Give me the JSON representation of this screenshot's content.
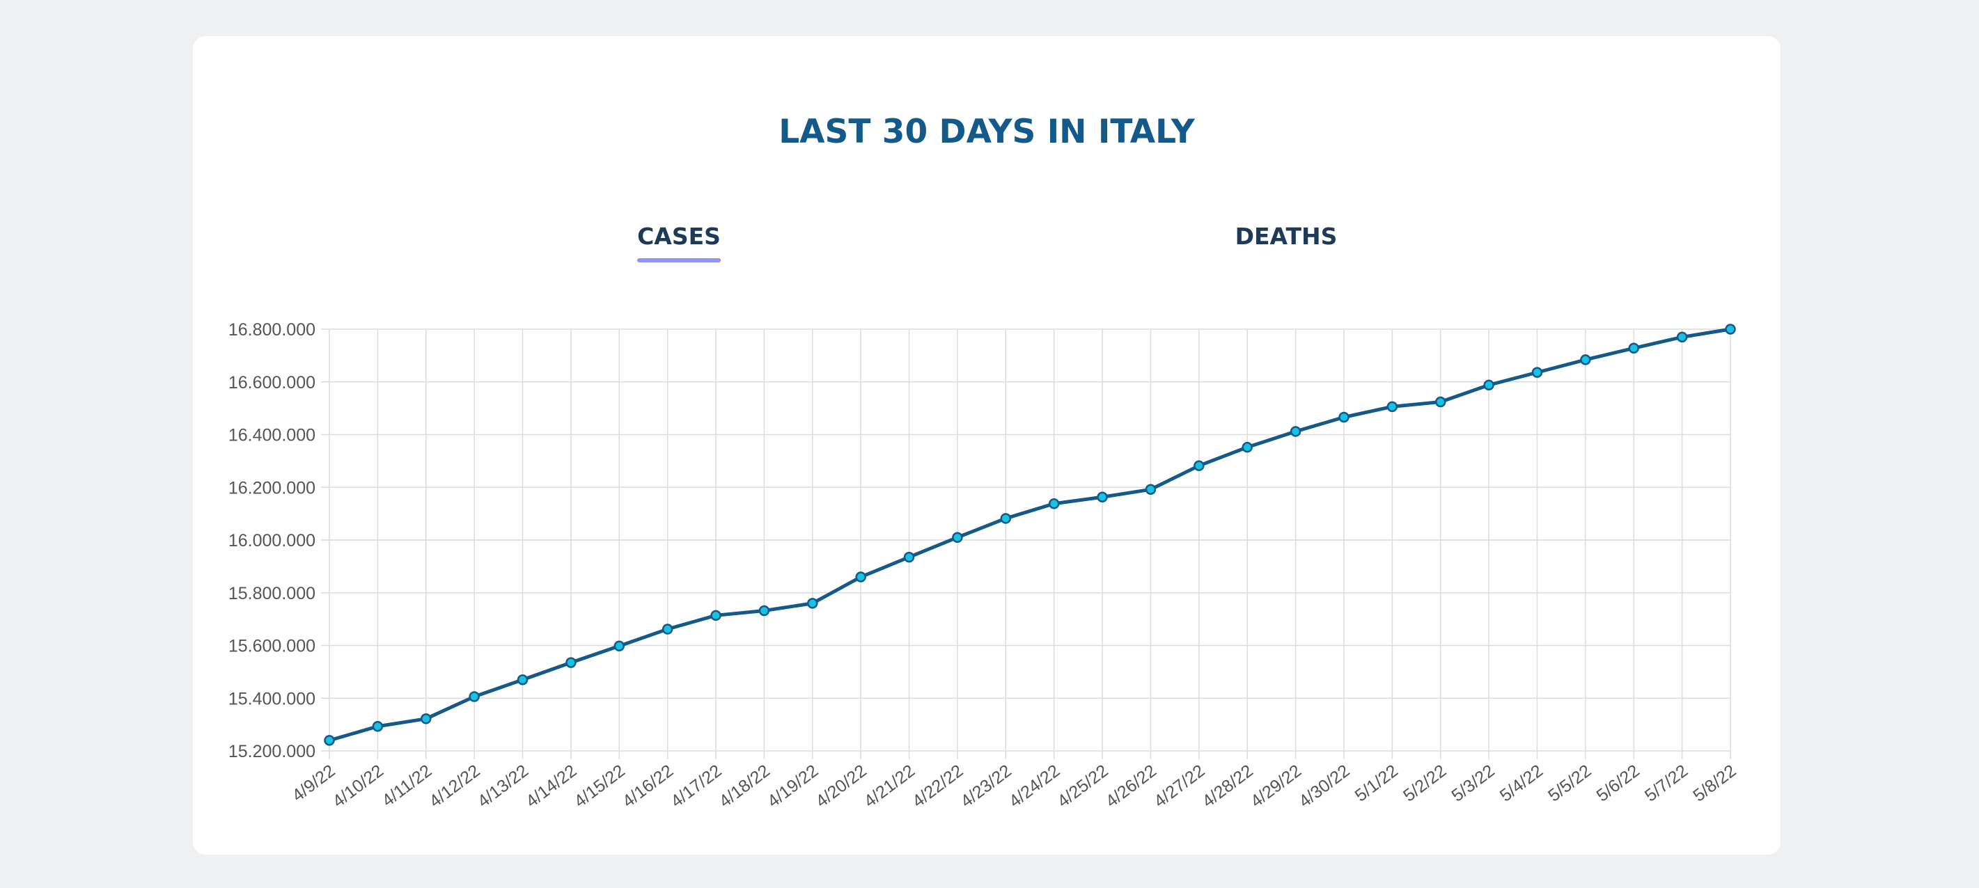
{
  "page": {
    "title": "LAST 30 DAYS IN ITALY"
  },
  "tabs": [
    {
      "label": "CASES",
      "active": true
    },
    {
      "label": "DEATHS",
      "active": false
    }
  ],
  "colors": {
    "title": "#135a8a",
    "tab_text": "#1d3b57",
    "tab_underline": "#9093ef",
    "line": "#135a8a",
    "point_fill": "#19c2e3",
    "grid": "#dcdcdc",
    "tick_text": "#555555"
  },
  "chart_data": {
    "type": "line",
    "title": "",
    "xlabel": "",
    "ylabel": "",
    "grid": true,
    "y_tick_format": "dot-thousands",
    "ylim": [
      15200000,
      16800000
    ],
    "y_ticks": [
      "16.800.000",
      "16.600.000",
      "16.400.000",
      "16.200.000",
      "16.000.000",
      "15.800.000",
      "15.600.000",
      "15.400.000",
      "15.200.000"
    ],
    "x": [
      "4/9/22",
      "4/10/22",
      "4/11/22",
      "4/12/22",
      "4/13/22",
      "4/14/22",
      "4/15/22",
      "4/16/22",
      "4/17/22",
      "4/18/22",
      "4/19/22",
      "4/20/22",
      "4/21/22",
      "4/22/22",
      "4/23/22",
      "4/24/22",
      "4/25/22",
      "4/26/22",
      "4/27/22",
      "4/28/22",
      "4/29/22",
      "4/30/22",
      "5/1/22",
      "5/2/22",
      "5/3/22",
      "5/4/22",
      "5/5/22",
      "5/6/22",
      "5/7/22",
      "5/8/22"
    ],
    "series": [
      {
        "values": [
          15240000,
          15293000,
          15322000,
          15406000,
          15470000,
          15535000,
          15598000,
          15662000,
          15714000,
          15732000,
          15760000,
          15860000,
          15935000,
          16010000,
          16082000,
          16138000,
          16163000,
          16192000,
          16282000,
          16352000,
          16412000,
          16466000,
          16506000,
          16524000,
          16588000,
          16636000,
          16684000,
          16728000,
          16770000,
          16800000
        ]
      }
    ]
  }
}
